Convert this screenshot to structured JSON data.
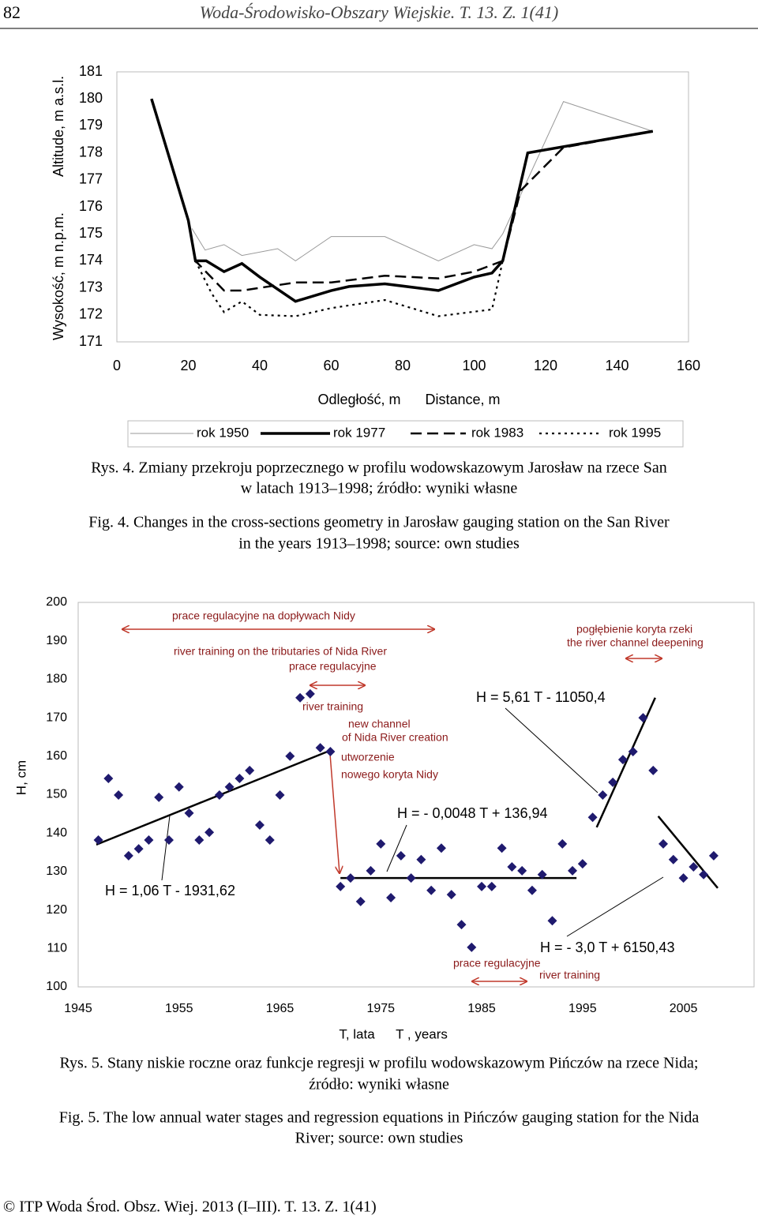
{
  "header": {
    "page_number": "82",
    "journal": "Woda-Środowisko-Obszary Wiejskie. T. 13. Z. 1(41)"
  },
  "chart_data": [
    {
      "type": "line",
      "y_label": [
        "Wysokość, m n.p.m.",
        "Altitude, m a.s.l."
      ],
      "x_label": [
        "Odległość, m",
        "Distance, m"
      ],
      "xlim": [
        0,
        160
      ],
      "xticks": [
        0,
        20,
        40,
        60,
        80,
        100,
        120,
        140,
        160
      ],
      "ylim": [
        171,
        181
      ],
      "yticks": [
        171,
        172,
        173,
        174,
        175,
        176,
        177,
        178,
        179,
        180,
        181
      ],
      "grid": false,
      "series": [
        {
          "name": "rok 1950",
          "color": "#999999",
          "line_style": "thin",
          "x": [
            21,
            24.7,
            30,
            35,
            45,
            50,
            60,
            75,
            90,
            100,
            105,
            108,
            125,
            150
          ],
          "values": [
            175.2,
            174.4,
            174.6,
            174.2,
            174.45,
            174.0,
            174.9,
            174.9,
            174.0,
            174.6,
            174.45,
            175.0,
            179.9,
            178.8
          ]
        },
        {
          "name": "rok 1977",
          "color": "#000000",
          "line_style": "thick",
          "x": [
            9.7,
            20,
            22,
            25,
            30,
            35,
            40,
            50,
            60,
            65,
            75,
            90,
            100,
            105,
            108,
            115,
            150
          ],
          "values": [
            180.0,
            175.5,
            174.0,
            174.0,
            173.6,
            173.9,
            173.4,
            172.5,
            172.9,
            173.05,
            173.15,
            172.9,
            173.4,
            173.55,
            174.0,
            178.0,
            178.8
          ]
        },
        {
          "name": "rok 1983",
          "color": "#000000",
          "line_style": "dashed",
          "x": [
            9.7,
            20,
            22,
            30,
            35,
            50,
            60,
            75,
            90,
            100,
            108,
            113,
            125,
            150
          ],
          "values": [
            180.0,
            175.5,
            174.0,
            172.9,
            172.9,
            173.2,
            173.2,
            173.45,
            173.35,
            173.6,
            174.0,
            176.6,
            178.2,
            178.8
          ]
        },
        {
          "name": "rok 1995",
          "color": "#000000",
          "line_style": "dotted",
          "x": [
            22,
            26.5,
            30,
            35,
            40,
            50,
            60,
            75,
            90,
            105,
            108
          ],
          "values": [
            174.0,
            172.8,
            172.1,
            172.5,
            172.0,
            171.95,
            172.25,
            172.55,
            171.95,
            172.2,
            174.0
          ]
        }
      ]
    },
    {
      "type": "scatter",
      "y_label": "H, cm",
      "x_label": [
        "T, lata",
        "T , years"
      ],
      "xlim": [
        1945,
        2012
      ],
      "xticks": [
        1945,
        1955,
        1965,
        1975,
        1985,
        1995,
        2005
      ],
      "ylim": [
        100,
        200
      ],
      "yticks": [
        100,
        110,
        120,
        130,
        140,
        150,
        160,
        170,
        180,
        190,
        200
      ],
      "grid": false,
      "color": "#1f1a6e",
      "x": [
        1947,
        1948,
        1949,
        1950,
        1951,
        1952,
        1953,
        1954,
        1955,
        1956,
        1957,
        1958,
        1959,
        1960,
        1961,
        1962,
        1963,
        1964,
        1965,
        1966,
        1967,
        1968,
        1969,
        1970,
        1971,
        1972,
        1973,
        1974,
        1975,
        1976,
        1977,
        1978,
        1979,
        1980,
        1981,
        1982,
        1983,
        1984,
        1985,
        1986,
        1987,
        1988,
        1989,
        1990,
        1991,
        1992,
        1993,
        1994,
        1995,
        1996,
        1997,
        1998,
        1999,
        2000,
        2001,
        2002,
        2003,
        2004,
        2005,
        2006,
        2007,
        2008
      ],
      "values": [
        138.2,
        154.2,
        149.9,
        134.1,
        135.9,
        138.2,
        149.3,
        138.2,
        152,
        145.2,
        138.2,
        140.2,
        149.9,
        152,
        154.2,
        156.3,
        142.1,
        138.2,
        149.9,
        160,
        175.2,
        176.2,
        162.2,
        161.2,
        126.1,
        128.3,
        122.2,
        130.2,
        137.2,
        123.2,
        134.1,
        128.3,
        133.1,
        125.1,
        136.1,
        124,
        116.2,
        110.3,
        126.1,
        126.1,
        136.1,
        131.2,
        130.2,
        125.1,
        129.2,
        117.2,
        137.2,
        130.2,
        132,
        144.1,
        149.9,
        153.2,
        159.1,
        161.2,
        170,
        156.3,
        137.2,
        133.1,
        128.3,
        131.2,
        129.2,
        134.1
      ],
      "trend_color": "#000000",
      "trend_lines": [
        {
          "x": [
            1946.8,
            1970.1
          ],
          "y": [
            137,
            161.6
          ]
        },
        {
          "x": [
            1971,
            1994.4
          ],
          "y": [
            128.3,
            128.3
          ]
        },
        {
          "x": [
            1996.4,
            2002.2
          ],
          "y": [
            141.5,
            175.2
          ]
        },
        {
          "x": [
            2002.5,
            2008.4
          ],
          "y": [
            144.4,
            125.7
          ]
        }
      ],
      "equations": [
        "H = 1,06 T - 1931,62",
        "H = - 0,0048 T + 136,94",
        "H = 5,61 T - 11050,4",
        "H = - 3,0 T + 6150,43"
      ],
      "annotation_color": "#8b1a1a",
      "annotations": [
        "prace regulacyjne na dopływach Nidy",
        "river training on the tributaries of Nida River",
        "prace regulacyjne",
        "river training",
        "new channel",
        "of Nida River creation",
        "utworzenie",
        "nowego koryta Nidy",
        "pogłębienie koryta rzeki",
        "the river channel deepening",
        "prace regulacyjne",
        "river training"
      ]
    }
  ],
  "captions": {
    "figure_4": {
      "pl": [
        "Rys. 4. Zmiany przekroju poprzecznego w profilu wodowskazowym Jarosław na rzece San",
        "w latach 1913–1998; źródło: wyniki własne"
      ],
      "en": [
        "Fig. 4. Changes in the cross-sections geometry in Jarosław gauging station on the San River",
        "in the years 1913–1998; source: own studies"
      ]
    },
    "figure_5": {
      "pl": [
        "Rys. 5. Stany niskie roczne oraz funkcje regresji w profilu wodowskazowym Pińczów na rzece Nida;",
        "źródło: wyniki własne"
      ],
      "en": [
        "Fig. 5. The low annual water stages and regression equations in Pińczów gauging station for the Nida",
        "River; source: own studies"
      ]
    }
  },
  "footer": "© ITP Woda Środ. Obsz. Wiej. 2013 (I–III). T. 13. Z. 1(41)"
}
